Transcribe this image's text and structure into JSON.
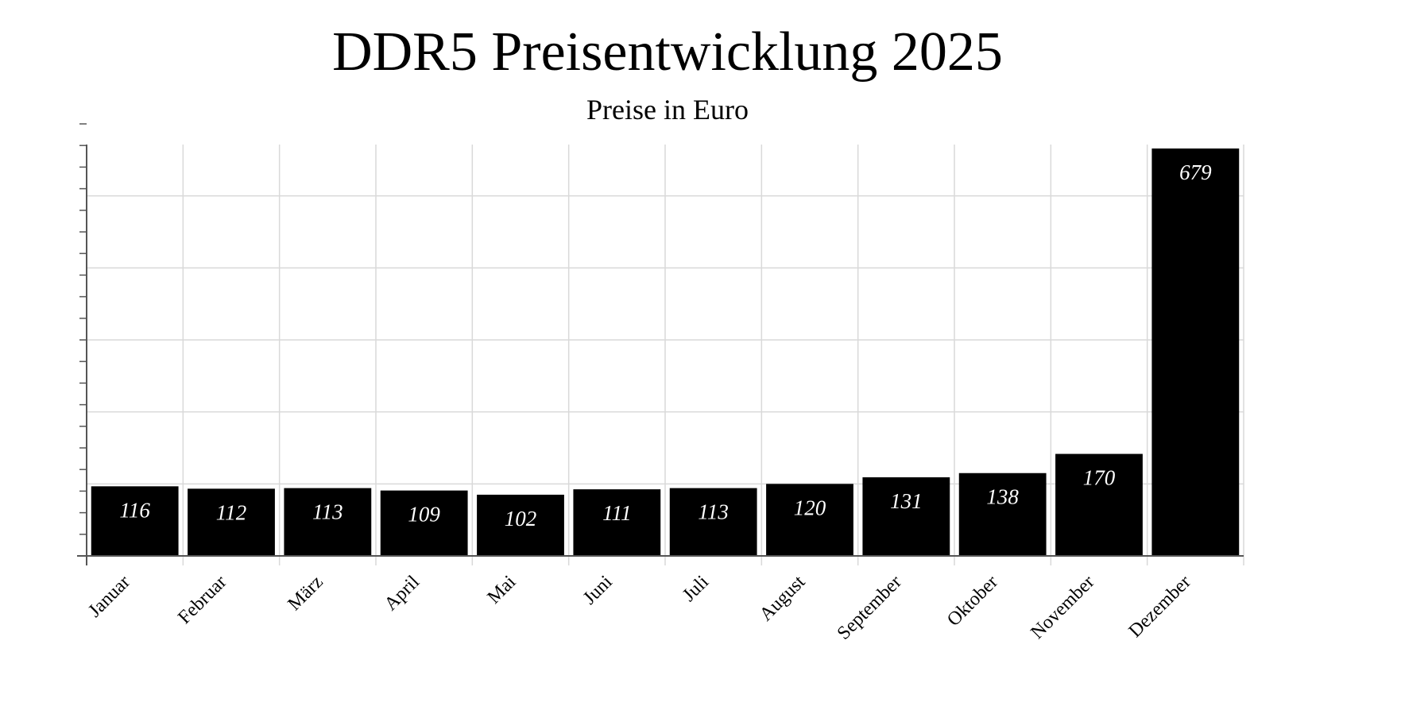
{
  "chart_data": {
    "type": "bar",
    "title": "DDR5 Preisentwicklung 2025",
    "subtitle": "Preise in Euro",
    "xlabel": "",
    "ylabel": "",
    "categories": [
      "Januar",
      "Februar",
      "März",
      "April",
      "Mai",
      "Juni",
      "Juli",
      "August",
      "September",
      "Oktober",
      "November",
      "Dezember"
    ],
    "values": [
      116,
      112,
      113,
      109,
      102,
      111,
      113,
      120,
      131,
      138,
      170,
      679
    ],
    "ylim": [
      0,
      720
    ],
    "grid": true,
    "legend": "none",
    "data_labels": "inside-top",
    "y_tick_labels_shown": false,
    "colors": {
      "bar": "#000000",
      "bar_label": "#ffffff",
      "grid": "#d9d9d9",
      "axis": "#555555",
      "text": "#000000"
    }
  }
}
